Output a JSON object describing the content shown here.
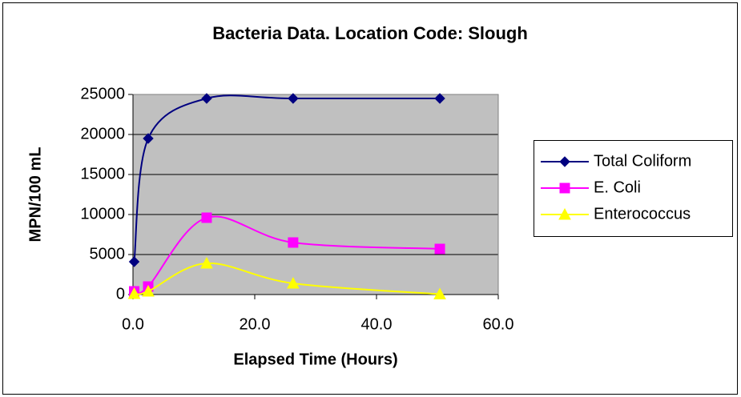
{
  "chart_data": {
    "type": "scatter-smooth",
    "title": "Bacteria Data. Location Code: Slough",
    "x_label": "Elapsed Time (Hours)",
    "y_label": "MPN/100 mL",
    "series": [
      {
        "name": "Total Coliform",
        "color": "#000080",
        "marker": "diamond",
        "x": [
          0.2,
          2.5,
          12.1,
          26.3,
          50.4
        ],
        "values": [
          4100,
          19500,
          24500,
          24500,
          24500
        ]
      },
      {
        "name": "E. Coli",
        "color": "#ff00ff",
        "marker": "square",
        "x": [
          0.2,
          2.5,
          12.1,
          26.3,
          50.4
        ],
        "values": [
          400,
          1000,
          9600,
          6500,
          5700
        ]
      },
      {
        "name": "Enterococcus",
        "color": "#ffff00",
        "marker": "triangle",
        "x": [
          0.2,
          2.5,
          12.1,
          26.3,
          50.4
        ],
        "values": [
          100,
          400,
          3900,
          1400,
          50
        ]
      }
    ],
    "xlim": [
      0,
      60
    ],
    "xticks": [
      {
        "value": 0,
        "label": "0.0"
      },
      {
        "value": 20,
        "label": "20.0"
      },
      {
        "value": 40,
        "label": "40.0"
      },
      {
        "value": 60,
        "label": "60.0"
      }
    ],
    "ylim": [
      0,
      25000
    ],
    "yticks": [
      0,
      5000,
      10000,
      15000,
      20000,
      25000
    ],
    "grid": true,
    "legend": "right"
  }
}
